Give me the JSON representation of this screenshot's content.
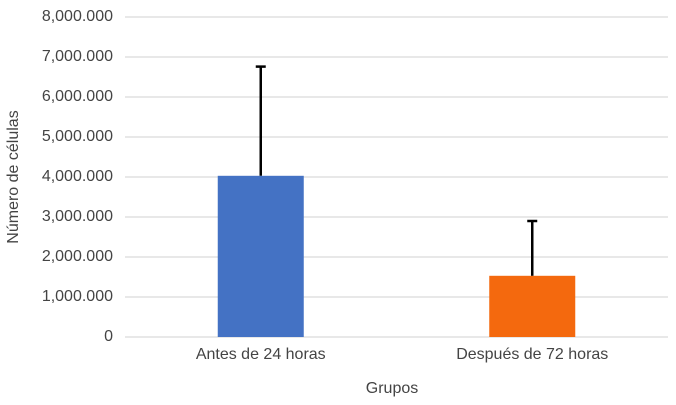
{
  "chart_data": {
    "type": "bar",
    "categories": [
      "Antes de 24 horas",
      "Después de 72 horas"
    ],
    "values": [
      4030000,
      1530000
    ],
    "errors": [
      2730000,
      1370000
    ],
    "colors": [
      "#4472c4",
      "#f4690e"
    ],
    "error_color": "#000000",
    "x_label": "Grupos",
    "y_label": "Número de células",
    "ylim": [
      0,
      8000000
    ],
    "yticks": [
      0,
      {
        "value": 1000000,
        "label": "1,000.000"
      },
      {
        "value": 2000000,
        "label": "2,000.000"
      },
      {
        "value": 3000000,
        "label": "3,000.000"
      },
      {
        "value": 4000000,
        "label": "4,000.000"
      },
      {
        "value": 5000000,
        "label": "5,000.000"
      },
      {
        "value": 6000000,
        "label": "6,000.000"
      },
      {
        "value": 7000000,
        "label": "7,000.000"
      },
      {
        "value": 8000000,
        "label": "8,000.000"
      }
    ],
    "grid": true
  }
}
